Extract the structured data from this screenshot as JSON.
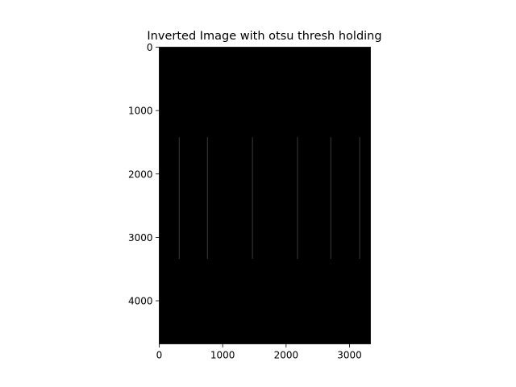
{
  "figure": {
    "background": "#ffffff"
  },
  "chart_data": {
    "type": "heatmap",
    "title": "Inverted Image with otsu thresh holding",
    "xlabel": "",
    "ylabel": "",
    "image": {
      "width": 3330,
      "height": 4680,
      "background_value": "#000000",
      "colormap": "gray"
    },
    "xlim": [
      0,
      3330
    ],
    "ylim": [
      4680,
      0
    ],
    "y_inverted": true,
    "xticks": [
      0,
      1000,
      2000,
      3000
    ],
    "xtick_labels": [
      "0",
      "1000",
      "2000",
      "3000"
    ],
    "yticks": [
      0,
      1000,
      2000,
      3000,
      4000
    ],
    "ytick_labels": [
      "0",
      "1000",
      "2000",
      "3000",
      "4000"
    ],
    "vertical_lines": {
      "color": "#3a3a3a",
      "y_start": 1420,
      "y_end": 3340,
      "x": [
        315,
        760,
        1470,
        2180,
        2705,
        3160
      ]
    },
    "grid": false,
    "legend": "none"
  }
}
